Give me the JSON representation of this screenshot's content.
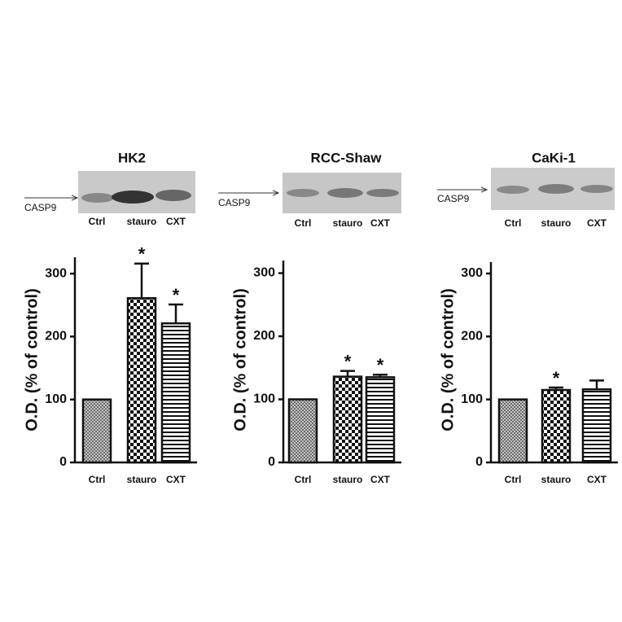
{
  "chart_data": [
    {
      "type": "bar",
      "title": "HK2",
      "blot_label": "CASP9",
      "y_label": "O.D. (% of control)",
      "categories": [
        "Ctrl",
        "stauro",
        "CXT"
      ],
      "values": [
        100,
        261,
        221
      ],
      "errors": [
        0,
        55,
        30
      ],
      "significance": [
        null,
        "*",
        "*"
      ],
      "patterns": [
        "crosshatch",
        "checker",
        "stripes"
      ],
      "ylim": [
        0,
        326
      ],
      "yticks": [
        0,
        100,
        200,
        300
      ]
    },
    {
      "type": "bar",
      "title": "RCC-Shaw",
      "blot_label": "CASP9",
      "y_label": "O.D. (% of control)",
      "categories": [
        "Ctrl",
        "stauro",
        "CXT"
      ],
      "values": [
        100,
        136,
        135
      ],
      "errors": [
        0,
        9,
        4
      ],
      "significance": [
        null,
        "*",
        "*"
      ],
      "patterns": [
        "crosshatch",
        "checker",
        "stripes"
      ],
      "ylim": [
        0,
        320
      ],
      "yticks": [
        0,
        100,
        200,
        300
      ]
    },
    {
      "type": "bar",
      "title": "CaKi-1",
      "blot_label": "CASP9",
      "y_label": "O.D. (% of control)",
      "categories": [
        "Ctrl",
        "stauro",
        "CXT"
      ],
      "values": [
        100,
        115,
        116
      ],
      "errors": [
        0,
        4,
        14
      ],
      "significance": [
        null,
        "*",
        null
      ],
      "patterns": [
        "crosshatch",
        "checker",
        "stripes"
      ],
      "ylim": [
        0,
        318
      ],
      "yticks": [
        0,
        100,
        200,
        300
      ]
    }
  ]
}
